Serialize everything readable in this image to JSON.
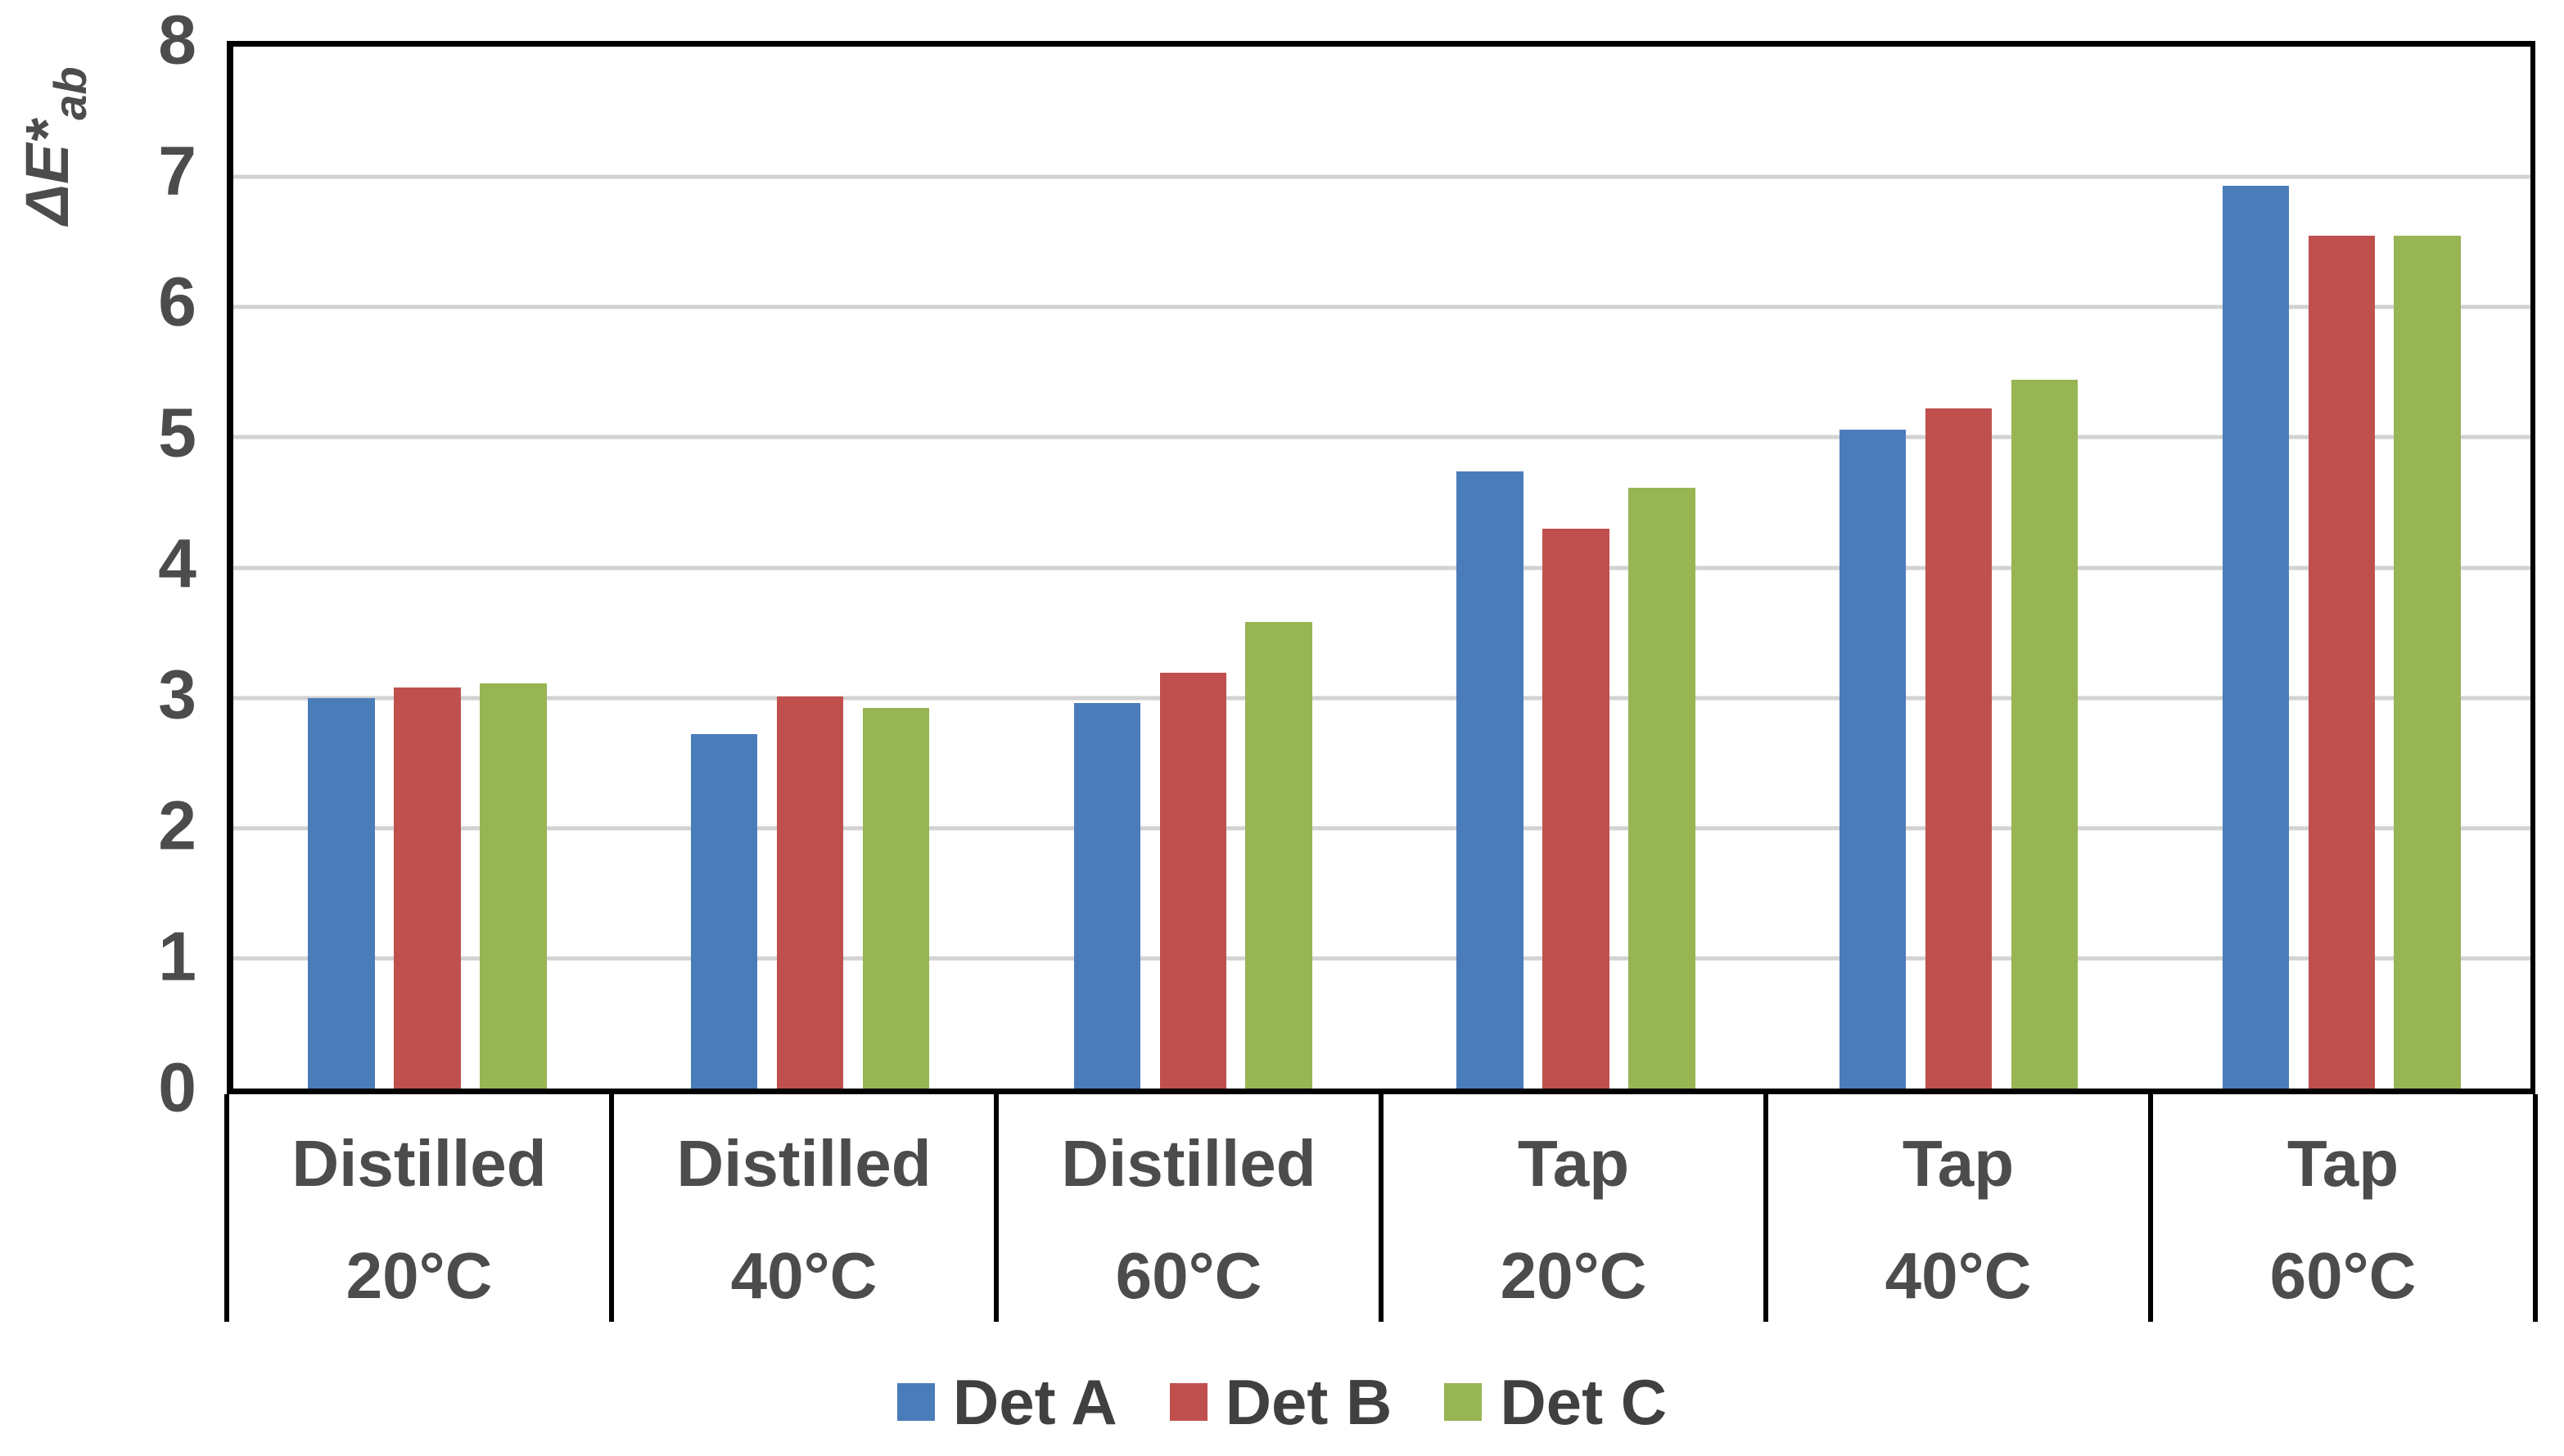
{
  "chart_data": {
    "type": "bar",
    "title": "",
    "ylabel": {
      "text": "ΔE*",
      "sub": "ab"
    },
    "xlabel": "",
    "ylim": [
      0,
      8
    ],
    "ytick_step": 1,
    "yticks": [
      0,
      1,
      2,
      3,
      4,
      5,
      6,
      7,
      8
    ],
    "grid": true,
    "legend_position": "bottom-center",
    "categories": [
      {
        "line1": "Distilled",
        "line2": "20°C"
      },
      {
        "line1": "Distilled",
        "line2": "40°C"
      },
      {
        "line1": "Distilled",
        "line2": "60°C"
      },
      {
        "line1": "Tap",
        "line2": "20°C"
      },
      {
        "line1": "Tap",
        "line2": "40°C"
      },
      {
        "line1": "Tap",
        "line2": "60°C"
      }
    ],
    "series": [
      {
        "name": "Det A",
        "color": "#4a7cba",
        "values": [
          3.0,
          2.72,
          2.96,
          4.74,
          5.06,
          6.93
        ]
      },
      {
        "name": "Det B",
        "color": "#c0504d",
        "values": [
          3.08,
          3.01,
          3.19,
          4.3,
          5.22,
          6.55
        ]
      },
      {
        "name": "Det C",
        "color": "#98b553",
        "values": [
          3.11,
          2.92,
          3.58,
          4.61,
          5.44,
          6.55
        ]
      }
    ],
    "styles": {
      "axis_color": "#000000",
      "grid_color": "#d2d2d2",
      "tick_text_color": "#4c4c4c",
      "legend_text_color": "#404040",
      "background": "#ffffff"
    }
  }
}
